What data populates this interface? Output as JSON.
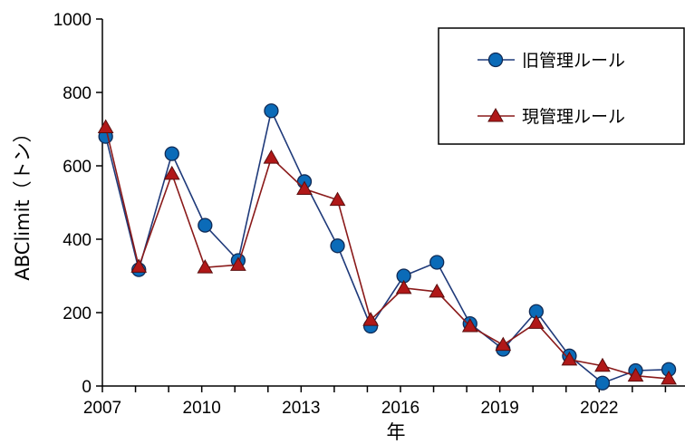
{
  "chart_data": {
    "type": "line",
    "title": "",
    "xlabel": "年",
    "ylabel": "ABClimit（トン）",
    "xlim": [
      2007,
      2024.7
    ],
    "ylim": [
      0,
      1000
    ],
    "x_ticks": [
      "2007",
      "2010",
      "2013",
      "2016",
      "2019",
      "2022"
    ],
    "y_ticks": [
      "0",
      "200",
      "400",
      "600",
      "800",
      "1000"
    ],
    "grid": false,
    "legend_position": "top-right",
    "series": [
      {
        "name": "旧管理ルール",
        "color": "#0b6bb8",
        "line_color": "#1f3a7a",
        "marker": "circle",
        "x": [
          2007.1,
          2008.1,
          2009.1,
          2010.1,
          2011.1,
          2012.1,
          2013.1,
          2014.1,
          2015.1,
          2016.1,
          2017.1,
          2018.1,
          2019.1,
          2020.1,
          2021.1,
          2022.1,
          2023.1,
          2024.1
        ],
        "values": [
          680,
          317,
          633,
          438,
          342,
          750,
          557,
          382,
          163,
          300,
          337,
          170,
          100,
          203,
          82,
          8,
          42,
          45
        ]
      },
      {
        "name": "現管理ルール",
        "color": "#b01818",
        "line_color": "#8a1a1a",
        "marker": "triangle",
        "x": [
          2007.1,
          2008.1,
          2009.1,
          2010.1,
          2011.1,
          2012.1,
          2013.1,
          2014.1,
          2015.1,
          2016.1,
          2017.1,
          2018.1,
          2019.1,
          2020.1,
          2021.1,
          2022.1,
          2023.1,
          2024.1
        ],
        "values": [
          705,
          325,
          578,
          323,
          330,
          622,
          537,
          507,
          180,
          267,
          257,
          163,
          112,
          172,
          72,
          55,
          28,
          20
        ]
      }
    ]
  }
}
